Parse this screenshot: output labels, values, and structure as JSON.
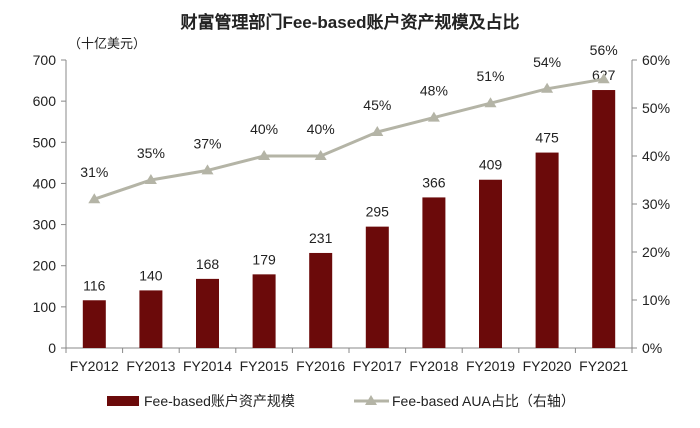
{
  "chart_data": {
    "type": "bar+line",
    "title": "财富管理部门Fee-based账户资产规模及占比",
    "unit_label": "（十亿美元）",
    "categories": [
      "FY2012",
      "FY2013",
      "FY2014",
      "FY2015",
      "FY2016",
      "FY2017",
      "FY2018",
      "FY2019",
      "FY2020",
      "FY2021"
    ],
    "series": [
      {
        "name": "Fee-based账户资产规模",
        "type": "bar",
        "axis": "left",
        "color": "#6B0A0A",
        "values": [
          116,
          140,
          168,
          179,
          231,
          295,
          366,
          409,
          475,
          627
        ],
        "labels": [
          "116",
          "140",
          "168",
          "179",
          "231",
          "295",
          "366",
          "409",
          "475",
          "627"
        ]
      },
      {
        "name": "Fee-based AUA占比（右轴）",
        "type": "line",
        "axis": "right",
        "color": "#B4B4A6",
        "marker": "triangle",
        "values": [
          31,
          35,
          37,
          40,
          40,
          45,
          48,
          51,
          54,
          56
        ],
        "labels": [
          "31%",
          "35%",
          "37%",
          "40%",
          "40%",
          "45%",
          "48%",
          "51%",
          "54%",
          "56%"
        ]
      }
    ],
    "left_axis": {
      "range": [
        0,
        700
      ],
      "ticks": [
        "0",
        "100",
        "200",
        "300",
        "400",
        "500",
        "600",
        "700"
      ]
    },
    "right_axis": {
      "range": [
        0,
        60
      ],
      "ticks": [
        "0%",
        "10%",
        "20%",
        "30%",
        "40%",
        "50%",
        "60%"
      ]
    },
    "grid": false,
    "legend": "bottom"
  }
}
